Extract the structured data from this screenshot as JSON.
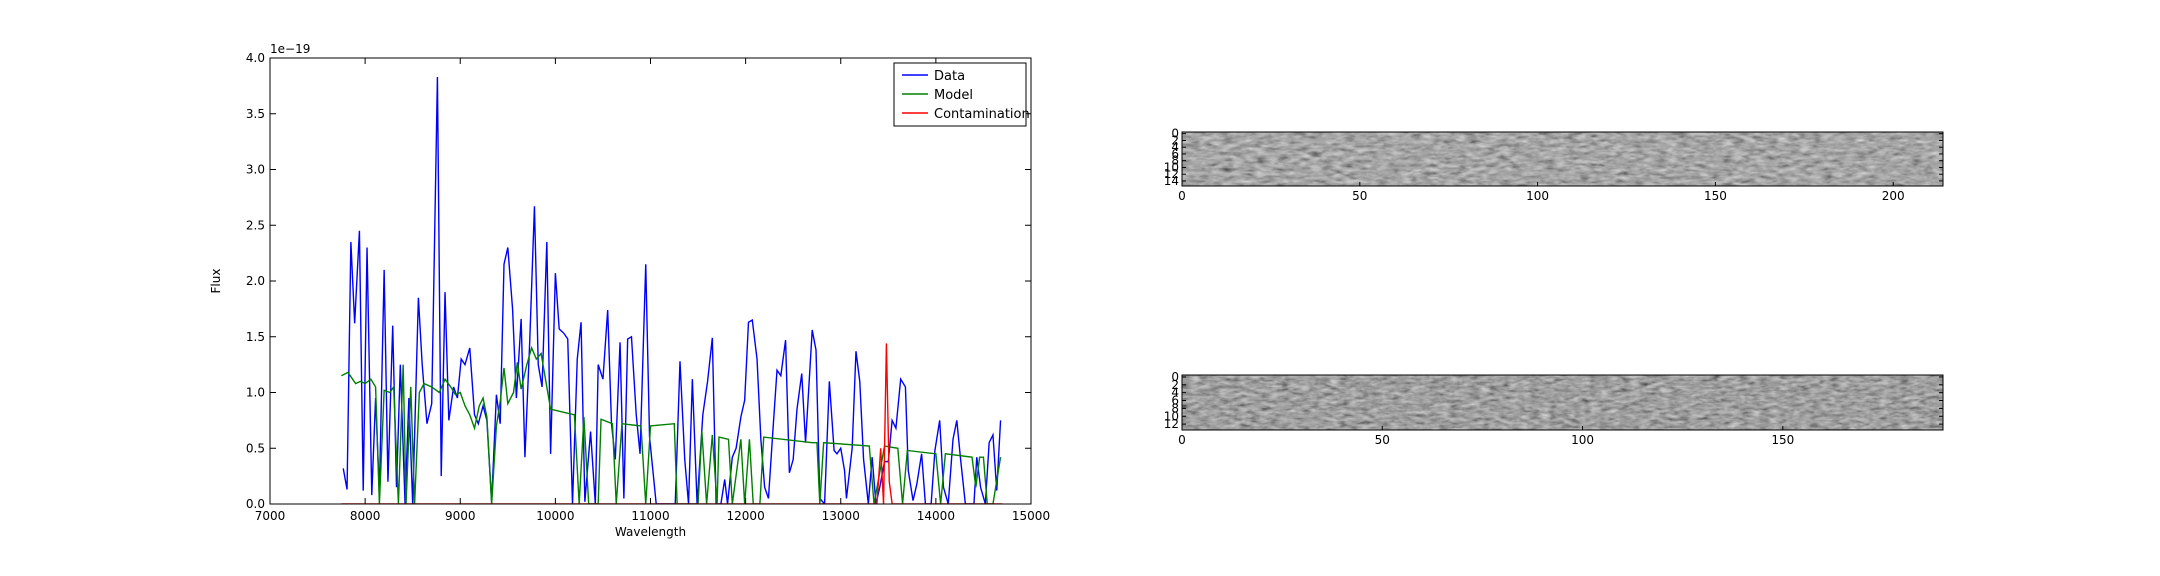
{
  "chart_data": [
    {
      "type": "line",
      "xlabel": "Wavelength",
      "ylabel": "Flux",
      "offset_text": "1e−19",
      "xlim": [
        7000,
        15000
      ],
      "xticks": [
        7000,
        8000,
        9000,
        10000,
        11000,
        12000,
        13000,
        14000,
        15000
      ],
      "ylim": [
        0,
        4.0
      ],
      "yticks": [
        {
          "value": 0,
          "label": "0.0"
        },
        0.5,
        {
          "value": 1,
          "label": "1.0"
        },
        1.5,
        {
          "value": 2,
          "label": "2.0"
        },
        2.5,
        {
          "value": 3,
          "label": "3.0"
        },
        3.5,
        {
          "value": 4,
          "label": "4.0"
        }
      ],
      "legend": "upper right",
      "grid": false,
      "series": [
        {
          "name": "Data",
          "color": "#0000ff",
          "x": [
            7770,
            7810,
            7850,
            7890,
            7940,
            7980,
            8020,
            8070,
            8110,
            8150,
            8200,
            8240,
            8290,
            8330,
            8370,
            8420,
            8460,
            8500,
            8560,
            8600,
            8650,
            8700,
            8760,
            8800,
            8840,
            8880,
            8930,
            8970,
            9010,
            9050,
            9100,
            9150,
            9190,
            9240,
            9280,
            9330,
            9380,
            9420,
            9460,
            9500,
            9550,
            9590,
            9640,
            9680,
            9730,
            9780,
            9820,
            9860,
            9910,
            9950,
            10000,
            10040,
            10090,
            10130,
            10180,
            10230,
            10270,
            10310,
            10370,
            10420,
            10450,
            10500,
            10550,
            10590,
            10630,
            10680,
            10720,
            10760,
            10800,
            10850,
            10890,
            10950,
            10990,
            11060,
            11260,
            11310,
            11360,
            11400,
            11440,
            11490,
            11550,
            11600,
            11650,
            11690,
            11740,
            11780,
            11810,
            11860,
            11900,
            11950,
            11990,
            12030,
            12070,
            12120,
            12160,
            12200,
            12240,
            12290,
            12330,
            12370,
            12420,
            12460,
            12500,
            12540,
            12590,
            12630,
            12700,
            12740,
            12780,
            12830,
            12880,
            12930,
            12960,
            13000,
            13040,
            13060,
            13120,
            13160,
            13200,
            13240,
            13290,
            13330,
            13370,
            13410,
            13460,
            13500,
            13540,
            13580,
            13630,
            13680,
            13710,
            13760,
            13800,
            13850,
            13890,
            13950,
            13990,
            14040,
            14080,
            14130,
            14180,
            14220,
            14260,
            14310,
            14350,
            14400,
            14430,
            14470,
            14520,
            14560,
            14600,
            14640,
            14680
          ],
          "values": [
            0.32,
            0.13,
            2.35,
            1.62,
            2.45,
            0.12,
            2.3,
            0.08,
            0.95,
            0.1,
            2.1,
            0.2,
            1.6,
            0.15,
            1.25,
            0.0,
            0.95,
            0.0,
            1.85,
            1.25,
            0.72,
            0.9,
            3.83,
            0.25,
            1.9,
            0.75,
            1.05,
            0.95,
            1.3,
            1.25,
            1.4,
            0.8,
            0.72,
            0.88,
            0.75,
            0.02,
            0.98,
            0.72,
            2.15,
            2.3,
            1.75,
            0.95,
            1.66,
            0.42,
            1.45,
            2.67,
            1.25,
            1.05,
            2.35,
            0.45,
            2.07,
            1.57,
            1.53,
            1.48,
            0.0,
            1.3,
            1.63,
            0.02,
            0.65,
            0.0,
            1.25,
            1.12,
            1.74,
            0.72,
            0.4,
            1.45,
            0.05,
            1.48,
            1.5,
            0.8,
            0.45,
            2.15,
            0.6,
            0.0,
            0.0,
            1.28,
            0.4,
            0.0,
            1.12,
            0.0,
            0.8,
            1.1,
            1.49,
            0.0,
            0.0,
            0.22,
            0.0,
            0.42,
            0.5,
            0.78,
            0.93,
            1.63,
            1.65,
            1.3,
            0.58,
            0.15,
            0.05,
            0.7,
            1.2,
            1.15,
            1.47,
            0.28,
            0.4,
            0.85,
            1.17,
            0.55,
            1.56,
            1.38,
            0.05,
            0.0,
            1.1,
            0.48,
            0.45,
            0.5,
            0.3,
            0.05,
            0.5,
            1.37,
            1.1,
            0.4,
            0.0,
            0.42,
            0.0,
            0.15,
            0.38,
            0.38,
            0.75,
            0.68,
            1.12,
            1.05,
            0.3,
            0.03,
            0.18,
            0.45,
            0.0,
            0.0,
            0.48,
            0.75,
            0.15,
            0.0,
            0.58,
            0.75,
            0.4,
            0.0,
            0.0,
            0.0,
            0.42,
            0.15,
            0.0,
            0.55,
            0.62,
            0.12,
            0.75
          ]
        },
        {
          "name": "Model",
          "color": "#008000",
          "x": [
            7750,
            7820,
            7900,
            7950,
            8000,
            8060,
            8110,
            8150,
            8200,
            8260,
            8300,
            8350,
            8400,
            8430,
            8480,
            8520,
            8570,
            8620,
            8700,
            8780,
            8840,
            8900,
            8950,
            9000,
            9050,
            9100,
            9150,
            9200,
            9240,
            9280,
            9330,
            9380,
            9420,
            9460,
            9500,
            9560,
            9600,
            9640,
            9700,
            9750,
            9800,
            9850,
            9900,
            9950,
            10100,
            10200,
            10250,
            10300,
            10350,
            10450,
            10480,
            10600,
            10640,
            10700,
            10900,
            10950,
            11000,
            11250,
            11280,
            11500,
            11540,
            11590,
            11650,
            11700,
            11720,
            11820,
            11860,
            11950,
            11990,
            12040,
            12080,
            12150,
            12190,
            12700,
            12750,
            12780,
            12820,
            13300,
            13350,
            13460,
            13600,
            13650,
            13700,
            14000,
            14050,
            14100,
            14380,
            14420,
            14460,
            14500,
            14540,
            14600,
            14680
          ],
          "values": [
            1.15,
            1.18,
            1.08,
            1.1,
            1.08,
            1.12,
            1.05,
            0.0,
            1.02,
            1.0,
            1.05,
            0.0,
            1.25,
            0.0,
            1.05,
            0.0,
            1.0,
            1.08,
            1.05,
            1.0,
            1.12,
            1.05,
            0.98,
            1.0,
            0.88,
            0.8,
            0.68,
            0.88,
            0.95,
            0.78,
            0.0,
            0.7,
            0.92,
            1.22,
            0.9,
            1.0,
            1.27,
            1.03,
            1.25,
            1.4,
            1.3,
            1.35,
            1.1,
            0.85,
            0.82,
            0.8,
            0.0,
            0.78,
            0.0,
            0.0,
            0.76,
            0.72,
            0.0,
            0.72,
            0.7,
            0.0,
            0.7,
            0.72,
            0.0,
            0.0,
            0.65,
            0.0,
            0.62,
            0.0,
            0.6,
            0.58,
            0.0,
            0.58,
            0.0,
            0.58,
            0.0,
            0.0,
            0.6,
            0.55,
            0.55,
            0.0,
            0.55,
            0.52,
            0.0,
            0.52,
            0.5,
            0.0,
            0.48,
            0.45,
            0.0,
            0.45,
            0.42,
            0.15,
            0.42,
            0.42,
            0.0,
            0.0,
            0.42
          ]
        },
        {
          "name": "Contamination",
          "color": "#ff0000",
          "x": [
            7750,
            13380,
            13420,
            13450,
            13480,
            13510,
            13540,
            14700
          ],
          "values": [
            0.0,
            0.0,
            0.5,
            0.0,
            1.44,
            0.2,
            0.0,
            0.0
          ]
        }
      ]
    },
    {
      "type": "image",
      "xlim": [
        0,
        214
      ],
      "xticks": [
        0,
        50,
        100,
        150,
        200
      ],
      "ylim": [
        15.5,
        -0.5
      ],
      "yticks": [
        0,
        2,
        4,
        6,
        8,
        10,
        12,
        14
      ]
    },
    {
      "type": "image",
      "xlim": [
        0,
        190
      ],
      "xticks": [
        0,
        50,
        100,
        150
      ],
      "ylim": [
        13.5,
        -0.5
      ],
      "yticks": [
        0,
        2,
        4,
        6,
        8,
        10,
        12
      ]
    }
  ]
}
